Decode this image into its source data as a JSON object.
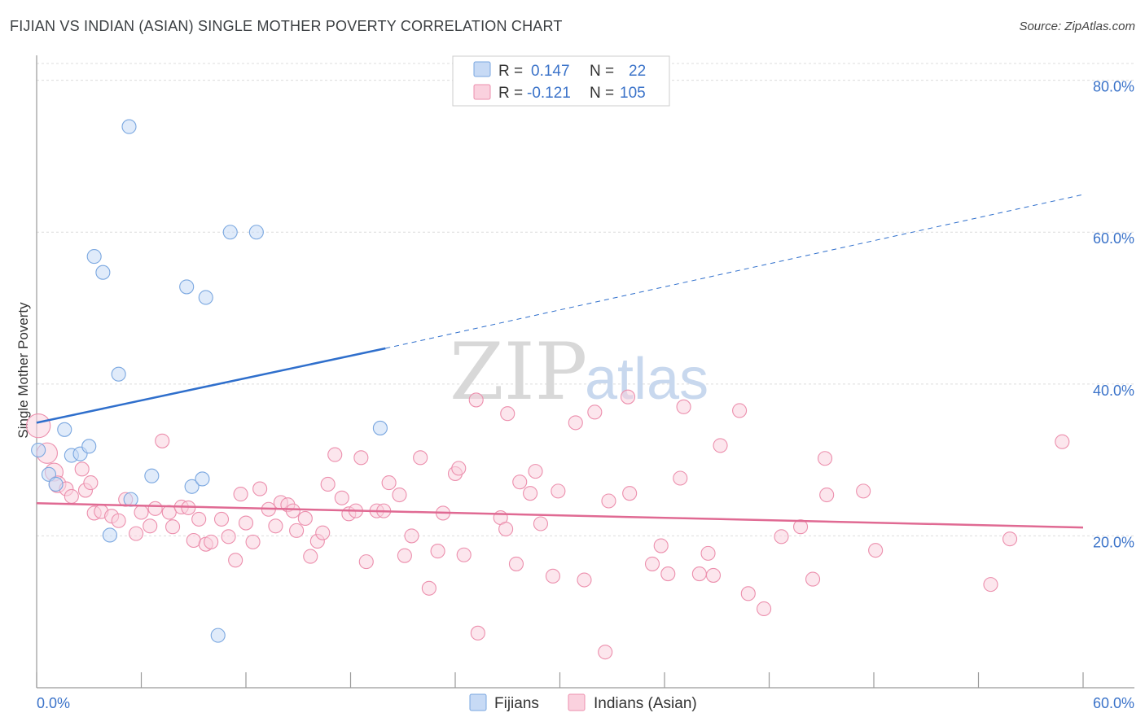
{
  "header": {
    "title": "FIJIAN VS INDIAN (ASIAN) SINGLE MOTHER POVERTY CORRELATION CHART",
    "source": "Source: ZipAtlas.com"
  },
  "watermark": {
    "zip": "ZIP",
    "atlas": "atlas"
  },
  "legend": {
    "rows": [
      {
        "r_label": "R =",
        "r_value": "0.147",
        "n_label": "N =",
        "n_value": "22",
        "color": "#a9c8f0"
      },
      {
        "r_label": "R =",
        "r_value": "-0.121",
        "n_label": "N =",
        "n_value": "105",
        "color": "#f6b8cb"
      }
    ]
  },
  "bottom_legend": {
    "fijians": "Fijians",
    "indians": "Indians (Asian)"
  },
  "chart_data": {
    "type": "scatter",
    "title": "FIJIAN VS INDIAN (ASIAN) SINGLE MOTHER POVERTY CORRELATION CHART",
    "xlabel": "",
    "ylabel": "Single Mother Poverty",
    "xlim": [
      0,
      60
    ],
    "ylim": [
      0,
      82
    ],
    "x_tick_labels": [
      "0.0%",
      "60.0%"
    ],
    "y_ticks": [
      20,
      40,
      60,
      80
    ],
    "y_tick_labels": [
      "20.0%",
      "40.0%",
      "60.0%",
      "80.0%"
    ],
    "grid": true,
    "colors": {
      "fijians": "#7aa7e0",
      "fijians_fill": "#c7daf5",
      "indians": "#ec8fad",
      "indians_fill": "#fad1de",
      "fijian_line": "#2f6fcc",
      "indian_line": "#e06a93"
    },
    "series": [
      {
        "name": "Fijians",
        "points": [
          [
            0.1,
            31.3
          ],
          [
            0.7,
            28.1
          ],
          [
            1.1,
            26.8
          ],
          [
            1.6,
            34.0
          ],
          [
            2.0,
            30.6
          ],
          [
            2.5,
            30.8
          ],
          [
            3.0,
            31.8
          ],
          [
            3.3,
            56.8
          ],
          [
            3.8,
            54.7
          ],
          [
            4.2,
            20.1
          ],
          [
            4.7,
            41.3
          ],
          [
            5.3,
            73.9
          ],
          [
            5.4,
            24.8
          ],
          [
            6.6,
            27.9
          ],
          [
            8.6,
            52.8
          ],
          [
            8.9,
            26.5
          ],
          [
            9.5,
            27.5
          ],
          [
            9.7,
            51.4
          ],
          [
            10.4,
            6.9
          ],
          [
            11.1,
            60.0
          ],
          [
            12.6,
            60.0
          ],
          [
            19.7,
            34.2
          ]
        ],
        "trend": {
          "x0": 0,
          "y0": 34.9,
          "x1": 20,
          "y1": 44.7,
          "x_dash_end": 59.9,
          "y_dash_end": 64.9
        }
      },
      {
        "name": "Indians (Asian)",
        "points": [
          [
            0.1,
            34.5
          ],
          [
            0.6,
            30.9
          ],
          [
            1.0,
            28.4
          ],
          [
            1.2,
            26.8
          ],
          [
            1.7,
            26.2
          ],
          [
            2.0,
            25.2
          ],
          [
            2.6,
            28.8
          ],
          [
            2.8,
            26.0
          ],
          [
            3.1,
            27.0
          ],
          [
            3.3,
            23.0
          ],
          [
            3.7,
            23.2
          ],
          [
            4.3,
            22.6
          ],
          [
            4.7,
            22.0
          ],
          [
            5.1,
            24.8
          ],
          [
            5.7,
            20.3
          ],
          [
            6.0,
            23.1
          ],
          [
            6.5,
            21.3
          ],
          [
            6.8,
            23.6
          ],
          [
            7.2,
            32.5
          ],
          [
            7.6,
            23.1
          ],
          [
            7.8,
            21.2
          ],
          [
            8.3,
            23.8
          ],
          [
            8.7,
            23.7
          ],
          [
            9.0,
            19.4
          ],
          [
            9.3,
            22.2
          ],
          [
            9.7,
            18.9
          ],
          [
            10.0,
            19.2
          ],
          [
            10.6,
            22.2
          ],
          [
            11.0,
            19.9
          ],
          [
            11.4,
            16.8
          ],
          [
            11.7,
            25.5
          ],
          [
            12.0,
            21.7
          ],
          [
            12.4,
            19.2
          ],
          [
            12.8,
            26.2
          ],
          [
            13.3,
            23.5
          ],
          [
            13.7,
            21.3
          ],
          [
            14.0,
            24.4
          ],
          [
            14.4,
            24.1
          ],
          [
            14.7,
            23.3
          ],
          [
            14.9,
            20.7
          ],
          [
            15.4,
            22.3
          ],
          [
            15.7,
            17.3
          ],
          [
            16.1,
            19.3
          ],
          [
            16.4,
            20.4
          ],
          [
            16.7,
            26.8
          ],
          [
            17.1,
            30.7
          ],
          [
            17.5,
            25.0
          ],
          [
            17.9,
            22.9
          ],
          [
            18.3,
            23.3
          ],
          [
            18.6,
            30.3
          ],
          [
            18.9,
            16.6
          ],
          [
            19.5,
            23.3
          ],
          [
            19.9,
            23.3
          ],
          [
            20.2,
            27.0
          ],
          [
            20.8,
            25.4
          ],
          [
            21.1,
            17.4
          ],
          [
            21.5,
            20.0
          ],
          [
            22.0,
            30.3
          ],
          [
            22.5,
            13.1
          ],
          [
            23.0,
            18.0
          ],
          [
            23.3,
            23.0
          ],
          [
            24.0,
            28.2
          ],
          [
            24.2,
            28.9
          ],
          [
            24.5,
            17.5
          ],
          [
            25.2,
            37.9
          ],
          [
            25.3,
            7.2
          ],
          [
            26.6,
            22.4
          ],
          [
            26.9,
            20.9
          ],
          [
            27.0,
            36.1
          ],
          [
            27.5,
            16.3
          ],
          [
            27.7,
            27.1
          ],
          [
            28.3,
            25.6
          ],
          [
            28.6,
            28.5
          ],
          [
            28.9,
            21.6
          ],
          [
            29.6,
            14.7
          ],
          [
            29.9,
            25.9
          ],
          [
            30.9,
            34.9
          ],
          [
            31.4,
            14.2
          ],
          [
            32.0,
            36.3
          ],
          [
            32.6,
            4.7
          ],
          [
            32.8,
            24.6
          ],
          [
            33.9,
            38.3
          ],
          [
            34.0,
            25.6
          ],
          [
            35.3,
            16.3
          ],
          [
            35.8,
            18.7
          ],
          [
            36.2,
            15.0
          ],
          [
            36.9,
            27.6
          ],
          [
            37.1,
            37.0
          ],
          [
            38.0,
            15.0
          ],
          [
            38.5,
            17.7
          ],
          [
            38.8,
            14.8
          ],
          [
            39.2,
            31.9
          ],
          [
            40.3,
            36.5
          ],
          [
            40.8,
            12.4
          ],
          [
            41.7,
            10.4
          ],
          [
            42.7,
            19.9
          ],
          [
            43.8,
            21.2
          ],
          [
            44.5,
            14.3
          ],
          [
            45.2,
            30.2
          ],
          [
            45.3,
            25.4
          ],
          [
            47.4,
            25.9
          ],
          [
            48.1,
            18.1
          ],
          [
            54.7,
            13.6
          ],
          [
            55.8,
            19.6
          ],
          [
            58.8,
            32.4
          ]
        ],
        "trend": {
          "x0": 0,
          "y0": 24.3,
          "x1": 60,
          "y1": 21.1
        }
      }
    ]
  }
}
